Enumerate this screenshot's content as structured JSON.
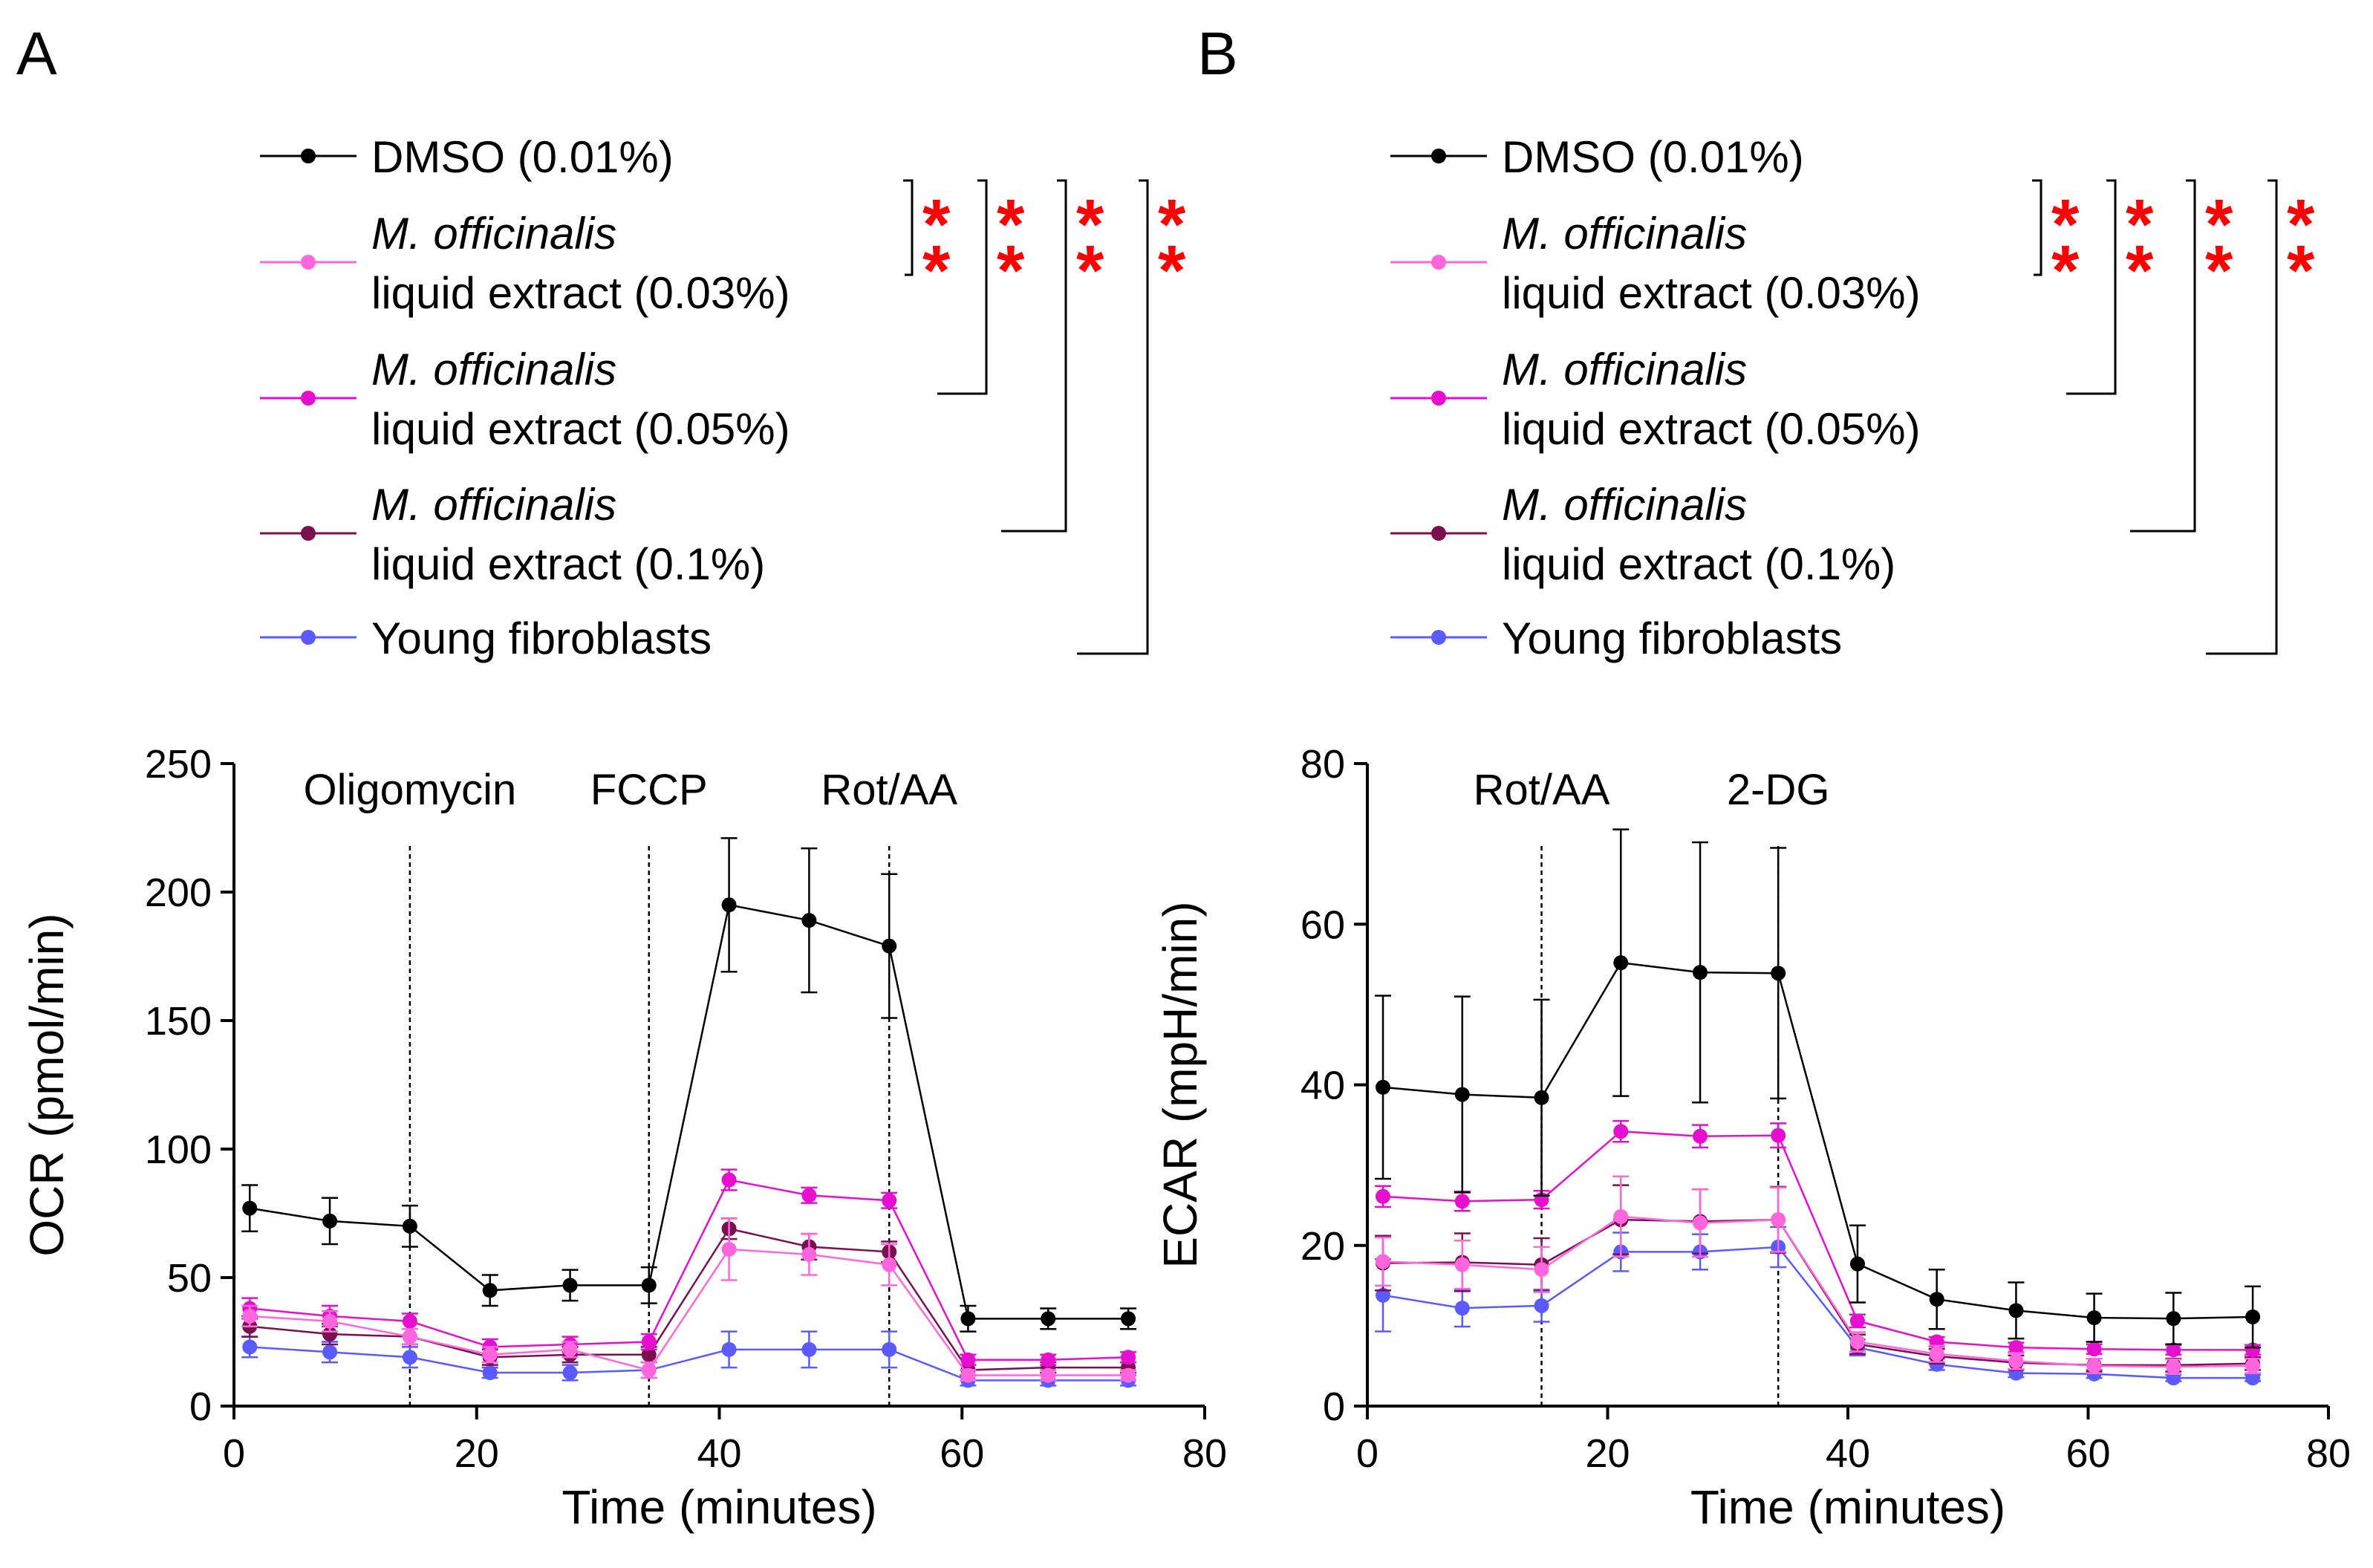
{
  "figure": {
    "panel_a_label": "A",
    "panel_b_label": "B",
    "significance": "**"
  },
  "legend": [
    {
      "key": "dmso",
      "line1": "DMSO (0.01%)",
      "line2": "",
      "italic_line1": false,
      "color": "#000000"
    },
    {
      "key": "mo003",
      "line1": "M. officinalis",
      "line2": "liquid extract (0.03%)",
      "italic_line1": true,
      "color": "#ff66dd"
    },
    {
      "key": "mo005",
      "line1": "M. officinalis",
      "line2": "liquid extract (0.05%)",
      "italic_line1": true,
      "color": "#e60fcf"
    },
    {
      "key": "mo01",
      "line1": "M. officinalis",
      "line2": "liquid extract (0.1%)",
      "italic_line1": true,
      "color": "#7a1050"
    },
    {
      "key": "young",
      "line1": "Young fibroblasts",
      "line2": "",
      "italic_line1": false,
      "color": "#5a5aff"
    }
  ],
  "chart_data": [
    {
      "type": "line",
      "panel": "A",
      "title": "",
      "xlabel": "Time (minutes)",
      "ylabel": "OCR (pmol/min)",
      "xlim": [
        0,
        80
      ],
      "ylim": [
        0,
        250
      ],
      "xticks": [
        0,
        20,
        40,
        60,
        80
      ],
      "yticks": [
        0,
        50,
        100,
        150,
        200,
        250
      ],
      "x": [
        1.3,
        7.9,
        14.5,
        21.1,
        27.7,
        34.2,
        40.8,
        47.4,
        54.0,
        60.5,
        67.1,
        73.7
      ],
      "annotations": [
        {
          "label": "Oligomycin",
          "x": 14.5
        },
        {
          "label": "FCCP",
          "x": 34.2
        },
        {
          "label": "Rot/AA",
          "x": 54.0
        }
      ],
      "series": [
        {
          "name": "DMSO (0.01%)",
          "key": "dmso",
          "values": [
            77,
            72,
            70,
            45,
            47,
            47,
            195,
            189,
            179,
            34,
            34,
            34
          ],
          "errors": [
            9,
            9,
            8,
            6,
            6,
            7,
            26,
            28,
            28,
            5,
            4,
            4
          ]
        },
        {
          "name": "M. officinalis liquid extract (0.03%)",
          "key": "mo003",
          "values": [
            35,
            33,
            27,
            20,
            22,
            14,
            61,
            59,
            55,
            12,
            12,
            12
          ],
          "errors": [
            4,
            4,
            3,
            3,
            3,
            3,
            12,
            8,
            8,
            2,
            2,
            2
          ]
        },
        {
          "name": "M. officinalis liquid extract (0.05%)",
          "key": "mo005",
          "values": [
            38,
            35,
            33,
            23,
            24,
            25,
            88,
            82,
            80,
            18,
            18,
            19
          ],
          "errors": [
            4,
            4,
            3,
            3,
            3,
            3,
            4,
            3,
            3,
            2,
            2,
            2
          ]
        },
        {
          "name": "M. officinalis liquid extract (0.1%)",
          "key": "mo01",
          "values": [
            31,
            28,
            27,
            19,
            20,
            20,
            69,
            62,
            60,
            14,
            15,
            15
          ],
          "errors": [
            4,
            4,
            3,
            3,
            3,
            3,
            4,
            5,
            4,
            2,
            2,
            2
          ]
        },
        {
          "name": "Young fibroblasts",
          "key": "young",
          "values": [
            23,
            21,
            19,
            13,
            13,
            14,
            22,
            22,
            22,
            10,
            10,
            10
          ],
          "errors": [
            4,
            4,
            4,
            2,
            3,
            3,
            7,
            7,
            7,
            2,
            2,
            2
          ]
        }
      ]
    },
    {
      "type": "line",
      "panel": "B",
      "title": "",
      "xlabel": "Time (minutes)",
      "ylabel": "ECAR (mpH/min)",
      "xlim": [
        0,
        80
      ],
      "ylim": [
        0,
        80
      ],
      "xticks": [
        0,
        20,
        40,
        60,
        80
      ],
      "yticks": [
        0,
        20,
        40,
        60,
        80
      ],
      "x": [
        1.3,
        7.9,
        14.5,
        21.1,
        27.7,
        34.2,
        40.8,
        47.4,
        54.0,
        60.5,
        67.1,
        73.7
      ],
      "annotations": [
        {
          "label": "Rot/AA",
          "x": 14.5
        },
        {
          "label": "2-DG",
          "x": 34.2
        }
      ],
      "series": [
        {
          "name": "DMSO (0.01%)",
          "key": "dmso",
          "values": [
            39.7,
            38.8,
            38.4,
            55.2,
            54.0,
            53.9,
            17.7,
            13.3,
            11.9,
            11.0,
            10.9,
            11.1
          ],
          "errors": [
            11.4,
            12.2,
            12.2,
            16.6,
            16.2,
            15.6,
            4.8,
            3.7,
            3.5,
            3.0,
            3.2,
            3.8
          ]
        },
        {
          "name": "M. officinalis liquid extract (0.03%)",
          "key": "mo003",
          "values": [
            18.0,
            17.6,
            17.0,
            23.6,
            22.8,
            23.2,
            8.0,
            6.5,
            5.6,
            5.0,
            4.9,
            5.0
          ],
          "errors": [
            3.0,
            3.0,
            2.8,
            5.0,
            4.2,
            4.0,
            1.2,
            1.0,
            1.0,
            0.9,
            0.9,
            0.9
          ]
        },
        {
          "name": "M. officinalis liquid extract (0.05%)",
          "key": "mo005",
          "values": [
            26.1,
            25.5,
            25.7,
            34.2,
            33.6,
            33.7,
            10.6,
            8.0,
            7.3,
            7.1,
            7.0,
            7.0
          ],
          "errors": [
            1.3,
            1.2,
            1.1,
            1.3,
            1.4,
            1.5,
            0.8,
            0.6,
            0.6,
            0.6,
            0.6,
            0.6
          ]
        },
        {
          "name": "M. officinalis liquid extract (0.1%)",
          "key": "mo01",
          "values": [
            17.8,
            17.9,
            17.6,
            23.2,
            23.0,
            23.2,
            7.7,
            6.2,
            5.4,
            5.1,
            5.1,
            5.3
          ],
          "errors": [
            3.4,
            3.6,
            3.3,
            4.3,
            4.0,
            4.1,
            1.2,
            0.9,
            0.9,
            0.8,
            0.8,
            0.8
          ]
        },
        {
          "name": "Young fibroblasts",
          "key": "young",
          "values": [
            13.8,
            12.2,
            12.5,
            19.2,
            19.2,
            19.8,
            7.3,
            5.2,
            4.1,
            4.0,
            3.5,
            3.5
          ],
          "errors": [
            4.5,
            2.3,
            2.0,
            2.4,
            2.2,
            2.5,
            1.0,
            0.7,
            0.5,
            0.5,
            0.4,
            0.4
          ]
        }
      ]
    }
  ]
}
